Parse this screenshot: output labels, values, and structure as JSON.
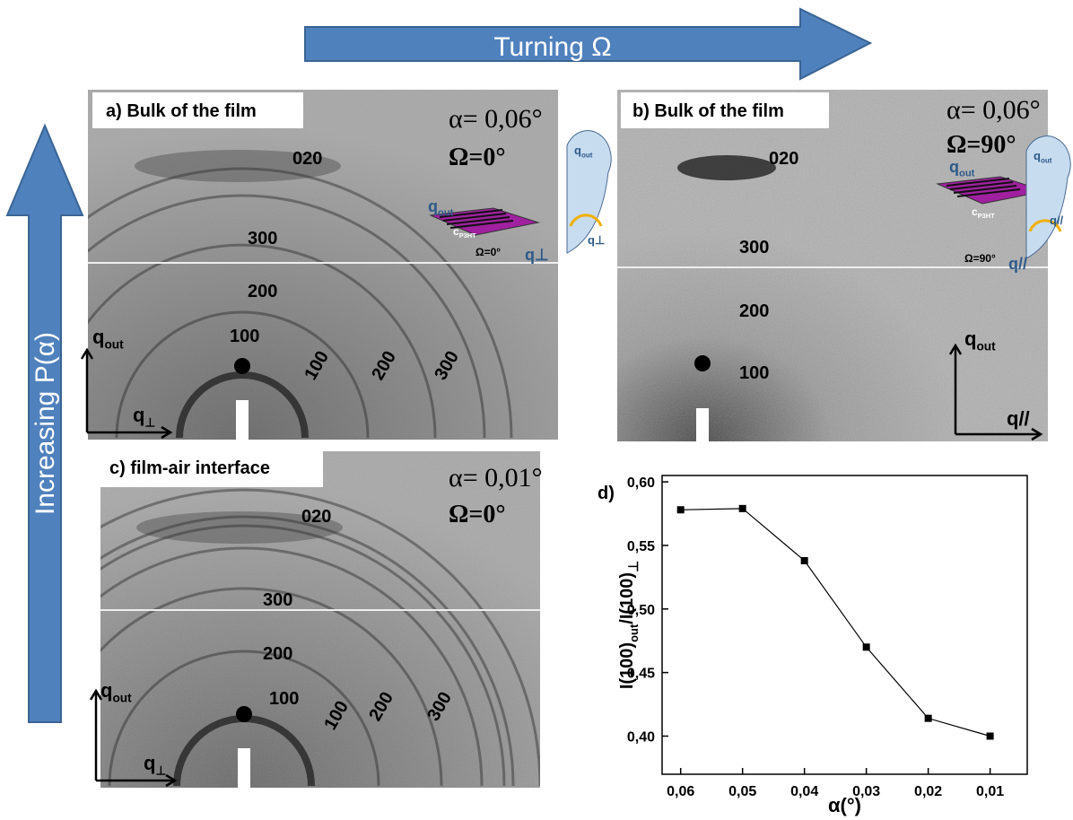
{
  "header": {
    "horizontal_arrow": "Turning Ω",
    "vertical_arrow": "Increasing P(α)"
  },
  "panels": [
    {
      "title": "a) Bulk of the film",
      "alpha": "α= 0,06°",
      "omega": "Ω=0°",
      "rings_meridional": [
        "020",
        "300",
        "200",
        "100"
      ],
      "rings_equatorial": [
        "100",
        "200",
        "300"
      ],
      "axis_vertical": {
        "symbol": "q",
        "sub": "out"
      },
      "axis_horizontal": {
        "symbol": "q",
        "sub": "⊥"
      },
      "inset": {
        "q_out": {
          "symbol": "q",
          "sub": "out"
        },
        "chain": {
          "symbol": "c",
          "sub": "P3HT"
        },
        "omega": "Ω=0°",
        "q_in": "q⊥",
        "bubble_out": {
          "symbol": "q",
          "sub": "out"
        },
        "bubble_in": "q⊥"
      }
    },
    {
      "title": "b) Bulk of the film",
      "alpha": "α= 0,06°",
      "omega": "Ω=90°",
      "rings_meridional": [
        "020",
        "300",
        "200",
        "100"
      ],
      "axis_vertical": {
        "symbol": "q",
        "sub": "out"
      },
      "axis_horizontal": {
        "symbol": "q//"
      },
      "inset": {
        "q_out": {
          "symbol": "q",
          "sub": "out"
        },
        "chain": {
          "symbol": "c",
          "sub": "P3HT"
        },
        "omega": "Ω=90°",
        "q_in": "q//",
        "bubble_out": {
          "symbol": "q",
          "sub": "out"
        },
        "bubble_in": "q//"
      }
    },
    {
      "title": "c) film-air interface",
      "alpha": "α= 0,01°",
      "omega": "Ω=0°",
      "rings_meridional": [
        "020",
        "300",
        "200",
        "100"
      ],
      "rings_equatorial": [
        "100",
        "200",
        "300"
      ],
      "axis_vertical": {
        "symbol": "q",
        "sub": "out"
      },
      "axis_horizontal": {
        "symbol": "q",
        "sub": "⊥"
      }
    }
  ],
  "chart_data": {
    "type": "line",
    "panel_label": "d)",
    "x_label": "α(°)",
    "y_label": {
      "main": "I(100)",
      "sub1": "out",
      "mid": "/I(100)",
      "sub2": "⊥"
    },
    "x": [
      0.06,
      0.05,
      0.04,
      0.03,
      0.02,
      0.01
    ],
    "series": [
      {
        "color": "#000000",
        "values": [
          0.578,
          0.579,
          0.538,
          0.47,
          0.414,
          0.4
        ]
      }
    ],
    "xlim": [
      0.063,
      0.004
    ],
    "xticks": [
      {
        "value": 0.06,
        "label": "0,06"
      },
      {
        "value": 0.05,
        "label": "0,05"
      },
      {
        "value": 0.04,
        "label": "0,04"
      },
      {
        "value": 0.03,
        "label": "0,03"
      },
      {
        "value": 0.02,
        "label": "0,02"
      },
      {
        "value": 0.01,
        "label": "0,01"
      }
    ],
    "ylim": [
      0.37,
      0.605
    ],
    "yticks": [
      {
        "value": 0.4,
        "label": "0,40"
      },
      {
        "value": 0.45,
        "label": "0,45"
      },
      {
        "value": 0.5,
        "label": "0,50"
      },
      {
        "value": 0.55,
        "label": "0,55"
      },
      {
        "value": 0.6,
        "label": "0,60"
      }
    ]
  }
}
